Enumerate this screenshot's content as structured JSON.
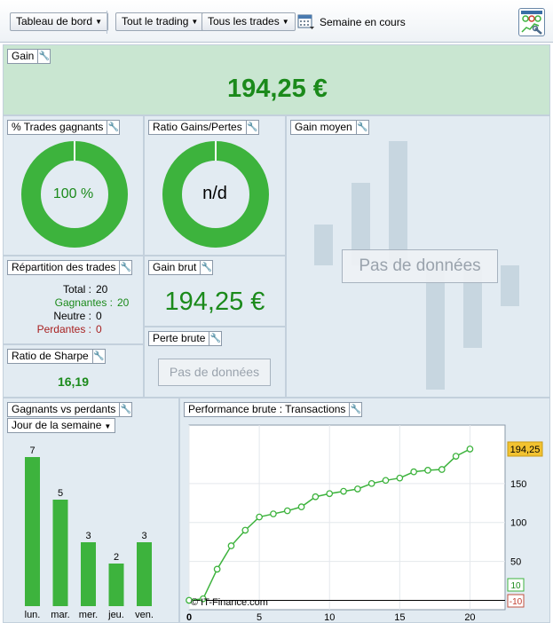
{
  "toolbar": {
    "dashboard_label": "Tableau de bord",
    "trading_filter": "Tout le trading",
    "trades_filter": "Tous les trades",
    "period_label": "Semaine en cours"
  },
  "gain": {
    "title": "Gain",
    "value": "194,25 €"
  },
  "win_rate": {
    "title": "% Trades gagnants",
    "value": "100 %",
    "percent": 100
  },
  "ratio": {
    "title": "Ratio Gains/Pertes",
    "value": "n/d"
  },
  "avg_gain": {
    "title": "Gain moyen",
    "no_data": "Pas de données"
  },
  "distribution": {
    "title": "Répartition des trades",
    "total_label": "Total :",
    "total_value": "20",
    "wins_label": "Gagnantes :",
    "wins_value": "20",
    "neutral_label": "Neutre :",
    "neutral_value": "0",
    "losses_label": "Perdantes :",
    "losses_value": "0"
  },
  "gross_gain": {
    "title": "Gain brut",
    "value": "194,25 €"
  },
  "gross_loss": {
    "title": "Perte brute",
    "no_data": "Pas de données"
  },
  "sharpe": {
    "title": "Ratio de Sharpe",
    "value": "16,19"
  },
  "win_loss": {
    "title": "Gagnants vs perdants",
    "group_by": "Jour de la semaine"
  },
  "performance": {
    "title": "Performance brute : Transactions",
    "credit": "© IT-Finance.com",
    "last_value_label": "194,25",
    "legend_pos": "10",
    "legend_neg": "-10"
  },
  "colors": {
    "accent_green": "#3db33d",
    "value_green": "#1b8a1b",
    "loss_red": "#c0392b",
    "panel_bg": "#e2ebf2",
    "header_bg": "#c9e6d1"
  },
  "chart_data": [
    {
      "type": "bar",
      "categories": [
        "lun.",
        "mar.",
        "mer.",
        "jeu.",
        "ven."
      ],
      "values": [
        7,
        5,
        3,
        2,
        3
      ],
      "data_labels": [
        "7",
        "5",
        "3",
        "2",
        "3"
      ]
    },
    {
      "type": "line",
      "x": [
        0,
        1,
        2,
        3,
        4,
        5,
        6,
        7,
        8,
        9,
        10,
        11,
        12,
        13,
        14,
        15,
        16,
        17,
        18,
        19,
        20
      ],
      "y": [
        0,
        2,
        40,
        70,
        90,
        107,
        111,
        115,
        120,
        133,
        137,
        140,
        143,
        150,
        154,
        157,
        165,
        167,
        168,
        185,
        194.25
      ],
      "xticks": [
        "0",
        "5",
        "10",
        "15",
        "20"
      ],
      "yticks": [
        "50",
        "100",
        "150"
      ],
      "xlim": [
        0,
        22.5
      ],
      "ylim": [
        -12,
        225
      ],
      "grid": true
    }
  ]
}
